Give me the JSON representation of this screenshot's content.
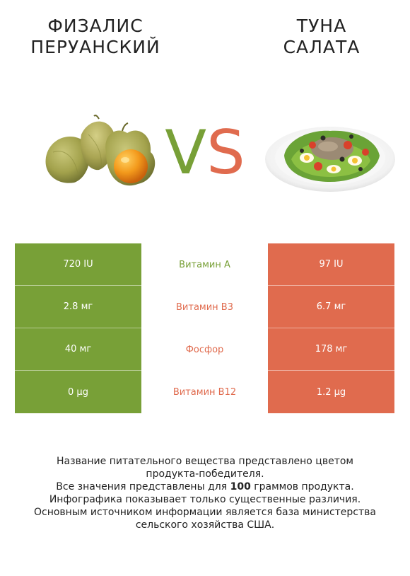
{
  "left_food": {
    "title_lines": [
      "Физалис",
      "перуанский"
    ]
  },
  "right_food": {
    "title_lines": [
      "Туна",
      "салата"
    ]
  },
  "vs": {
    "v": "V",
    "s": "S"
  },
  "colors": {
    "left": "#78a037",
    "right": "#e06b4e"
  },
  "rows": [
    {
      "left": "720 IU",
      "nutrient": "Витамин A",
      "right": "97 IU",
      "winner": "left"
    },
    {
      "left": "2.8 мг",
      "nutrient": "Витамин B3",
      "right": "6.7 мг",
      "winner": "right"
    },
    {
      "left": "40 мг",
      "nutrient": "Фосфор",
      "right": "178 мг",
      "winner": "right"
    },
    {
      "left": "0 µg",
      "nutrient": "Витамин B12",
      "right": "1.2 µg",
      "winner": "right"
    }
  ],
  "footnote": {
    "line1": "Название питательного вещества представлено цветом",
    "line2": "продукта-победителя.",
    "line3_pre": "Все значения представлены для ",
    "line3_bold": "100",
    "line3_post": " граммов продукта.",
    "line4": "Инфографика показывает только существенные различия.",
    "line5": "Основным источником информации является база министерства",
    "line6": "сельского хозяйства США."
  }
}
